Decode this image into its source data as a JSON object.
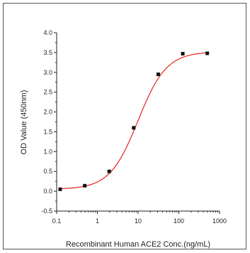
{
  "chart_data": {
    "type": "scatter",
    "xlabel": "Recombinant Human ACE2 Conc.(ng/mL)",
    "ylabel": "OD Value (450nm)",
    "x_scale": "log",
    "xlim": [
      0.1,
      1000
    ],
    "ylim": [
      -0.5,
      4.0
    ],
    "x_ticks": [
      0.1,
      1,
      10,
      100,
      1000
    ],
    "x_tick_labels": [
      "0.1",
      "1",
      "10",
      "100",
      "1000"
    ],
    "y_ticks": [
      -0.5,
      0.0,
      0.5,
      1.0,
      1.5,
      2.0,
      2.5,
      3.0,
      3.5,
      4.0
    ],
    "y_tick_labels": [
      "-0.5",
      "0.0",
      "0.5",
      "1.0",
      "1.5",
      "2.0",
      "2.5",
      "3.0",
      "3.5",
      "4.0"
    ],
    "grid": false,
    "series": [
      {
        "x": [
          0.122,
          0.49,
          1.95,
          7.8,
          31.25,
          125,
          500
        ],
        "y": [
          0.05,
          0.14,
          0.5,
          1.6,
          2.95,
          3.47,
          3.48
        ],
        "marker": "square",
        "color": "#111111"
      }
    ],
    "fit": {
      "type": "4PL",
      "color": "#e8211d",
      "bottom": 0.05,
      "top": 3.52,
      "ec50": 10,
      "hill": 1.25
    }
  }
}
